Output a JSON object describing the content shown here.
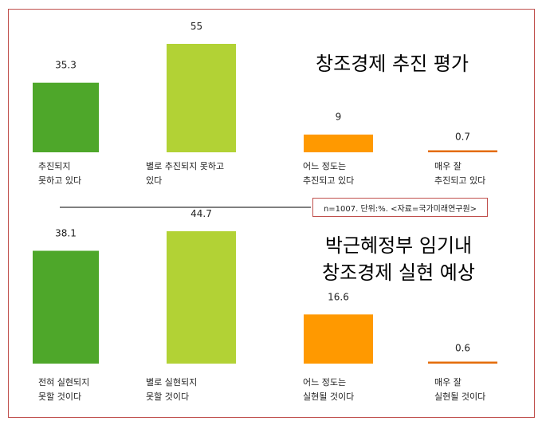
{
  "colors": {
    "dark_green": "#4ea72a",
    "light_green": "#b2d235",
    "orange": "#ff9900",
    "dark_orange": "#e46c0a",
    "border": "#c0504d"
  },
  "note": "n=1007. 단위:%. <자료=국가미래연구원>",
  "chart_data": [
    {
      "type": "bar",
      "title": [
        "창조경제 추진 평가"
      ],
      "categories": [
        [
          "추진되지",
          "못하고 있다"
        ],
        [
          "별로 추진되지 못하고",
          "있다"
        ],
        [
          "어느 정도는",
          "추진되고 있다"
        ],
        [
          "매우 잘",
          "추진되고 있다"
        ]
      ],
      "values": [
        35.3,
        55,
        9,
        0.7
      ],
      "value_labels": [
        "35.3",
        "55",
        "9",
        "0.7"
      ],
      "colors": [
        "#4ea72a",
        "#b2d235",
        "#ff9900",
        "#e46c0a"
      ]
    },
    {
      "type": "bar",
      "title": [
        "박근혜정부 임기내",
        "창조경제 실현 예상"
      ],
      "categories": [
        [
          "전혀 실현되지",
          "못할 것이다"
        ],
        [
          "별로 실현되지",
          "못할 것이다"
        ],
        [
          "어느 정도는",
          "실현될 것이다"
        ],
        [
          "매우 잘",
          "실현될 것이다"
        ]
      ],
      "values": [
        38.1,
        44.7,
        16.6,
        0.6
      ],
      "value_labels": [
        "38.1",
        "44.7",
        "16.6",
        "0.6"
      ],
      "colors": [
        "#4ea72a",
        "#b2d235",
        "#ff9900",
        "#e46c0a"
      ]
    }
  ]
}
